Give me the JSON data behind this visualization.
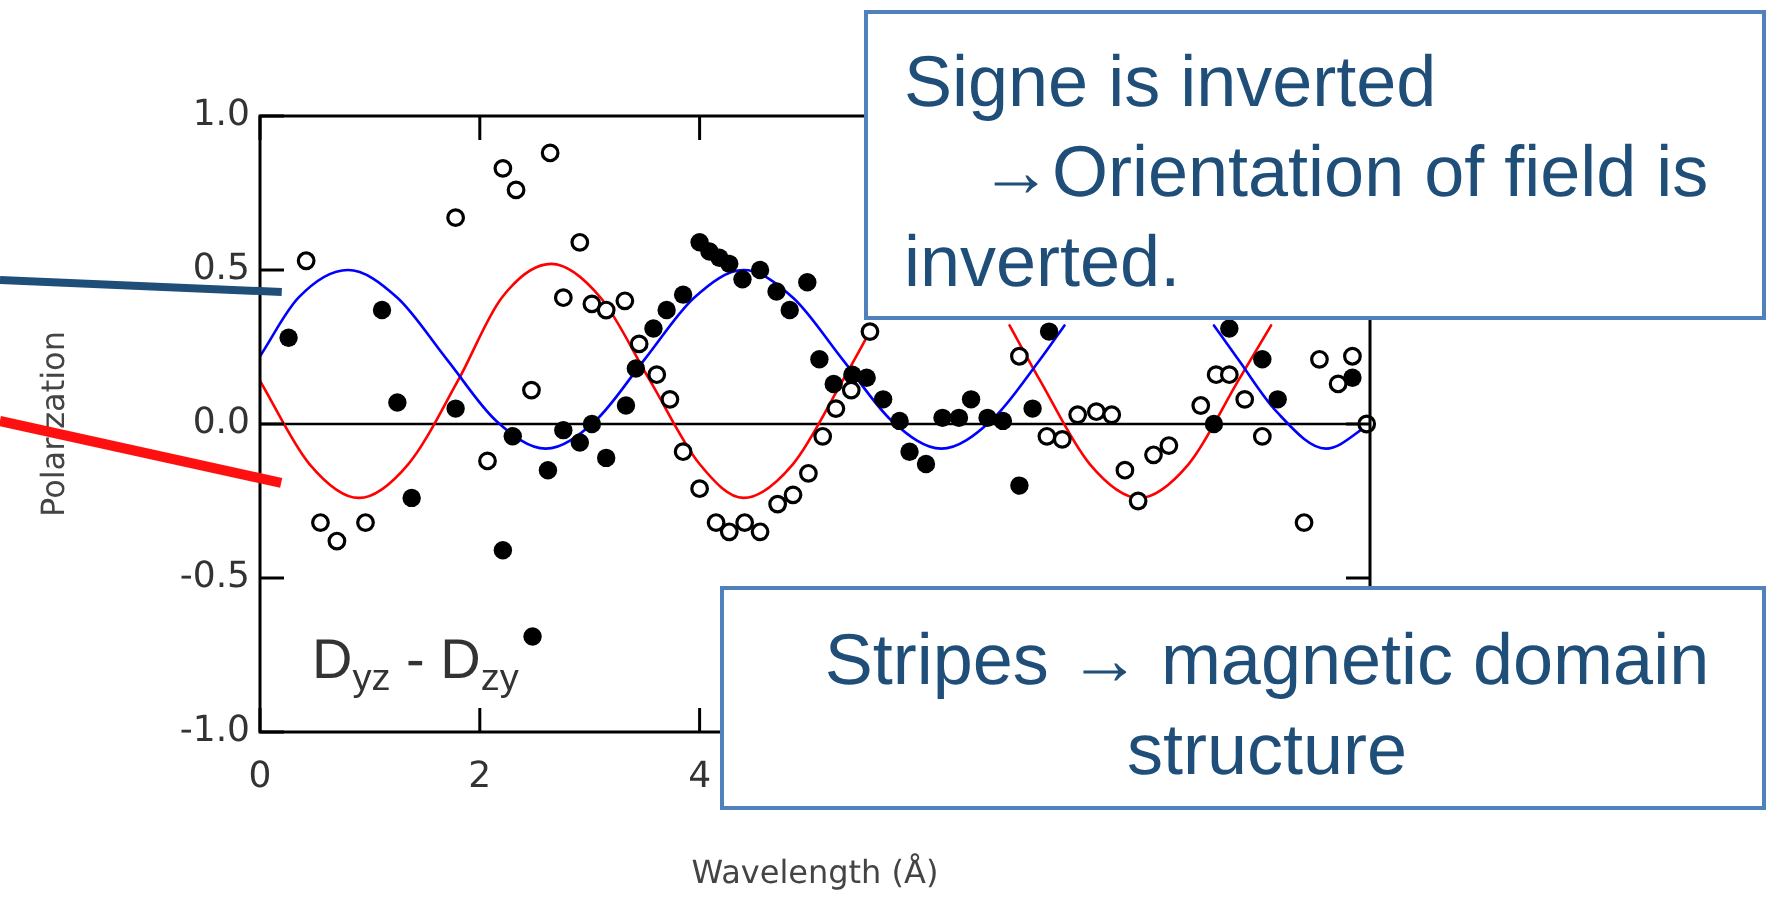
{
  "chart_data": {
    "type": "scatter",
    "xlabel": "Wavelength (Å)",
    "ylabel": "Polarization",
    "xlim": [
      0,
      10.1
    ],
    "ylim": [
      -1,
      1
    ],
    "xticks": [
      0,
      2,
      4
    ],
    "yticks": [
      {
        "value": 1,
        "label": "1.0"
      },
      0.5,
      {
        "value": 0,
        "label": "0.0"
      },
      -0.5,
      {
        "value": -1,
        "label": "-1.0"
      }
    ],
    "grid": false,
    "legend": false,
    "marker": "circle",
    "ref_lines": [
      {
        "axis": "y",
        "value": 0,
        "color": "#000000"
      }
    ],
    "annotations": [
      "D$_{yz}$ - D$_{zy}$",
      "Signe is inverted\n→Orientation of field is inverted.",
      "Stripes → magnetic domain\nstructure"
    ],
    "series": [
      {
        "color": "#000000",
        "x": [
          0.26,
          1.11,
          1.25,
          1.38,
          1.78,
          2.21,
          2.3,
          2.48,
          2.62,
          2.76,
          2.91,
          3.02,
          3.15,
          3.33,
          3.42,
          3.58,
          3.7,
          3.85,
          4.0,
          4.09,
          4.18,
          4.27,
          4.39,
          4.55,
          4.7,
          4.82,
          4.98,
          5.09,
          5.22,
          5.39,
          5.52,
          5.67,
          5.82,
          5.91,
          6.06,
          6.21,
          6.36,
          6.47,
          6.62,
          6.76,
          6.91,
          7.03,
          7.18,
          8.68,
          8.82,
          9.12,
          9.26,
          9.94
        ],
        "values": [
          0.28,
          0.37,
          0.07,
          -0.24,
          0.05,
          -0.41,
          -0.04,
          -0.69,
          -0.15,
          -0.02,
          -0.06,
          0.0,
          -0.11,
          0.06,
          0.18,
          0.31,
          0.37,
          0.42,
          0.59,
          0.56,
          0.54,
          0.52,
          0.47,
          0.5,
          0.43,
          0.37,
          0.46,
          0.21,
          0.13,
          0.16,
          0.15,
          0.08,
          0.01,
          -0.09,
          -0.13,
          0.02,
          0.02,
          0.08,
          0.02,
          0.01,
          -0.2,
          0.05,
          0.3,
          0.0,
          0.31,
          0.21,
          0.08,
          0.15
        ]
      },
      {
        "color": "#000000",
        "x": [
          0.42,
          0.55,
          0.7,
          0.96,
          1.78,
          2.07,
          2.21,
          2.33,
          2.47,
          2.64,
          2.76,
          2.91,
          3.02,
          3.15,
          3.32,
          3.45,
          3.61,
          3.73,
          3.85,
          4.0,
          4.15,
          4.27,
          4.41,
          4.55,
          4.71,
          4.85,
          4.99,
          5.12,
          5.24,
          5.38,
          5.55,
          6.91,
          7.16,
          7.3,
          7.44,
          7.61,
          7.75,
          7.87,
          7.99,
          8.13,
          8.27,
          8.56,
          8.7,
          8.82,
          8.96,
          9.12,
          9.5,
          9.64,
          9.81,
          9.94,
          10.07
        ],
        "values": [
          0.53,
          -0.32,
          -0.38,
          -0.32,
          0.67,
          -0.12,
          0.83,
          0.76,
          0.11,
          0.88,
          0.41,
          0.59,
          0.39,
          0.37,
          0.4,
          0.26,
          0.16,
          0.08,
          -0.09,
          -0.21,
          -0.32,
          -0.35,
          -0.32,
          -0.35,
          -0.26,
          -0.23,
          -0.16,
          -0.04,
          0.05,
          0.11,
          0.3,
          0.22,
          -0.04,
          -0.05,
          0.03,
          0.04,
          0.03,
          -0.15,
          -0.25,
          -0.1,
          -0.07,
          0.06,
          0.16,
          0.16,
          0.08,
          -0.04,
          -0.32,
          0.21,
          0.13,
          0.22,
          0.0
        ]
      },
      {
        "type": "line",
        "color": "#0000ff",
        "marker": "none",
        "line_style": "solid",
        "x": [
          0,
          0.35,
          0.8,
          1.25,
          1.7,
          2.15,
          2.6,
          3.05,
          3.5,
          3.95,
          4.4,
          4.85,
          5.3,
          5.75,
          6.2,
          6.65,
          7.1,
          7.32,
          8.0,
          8.68,
          8.9,
          9.25,
          9.7,
          10.1
        ],
        "values": [
          0.22,
          0.41,
          0.5,
          0.41,
          0.21,
          0.01,
          -0.08,
          0.01,
          0.21,
          0.41,
          0.5,
          0.41,
          0.21,
          0.01,
          -0.08,
          0.01,
          0.21,
          0.32,
          null,
          0.32,
          0.21,
          0.04,
          -0.08,
          0.0
        ]
      },
      {
        "type": "line",
        "color": "#ff0000",
        "marker": "none",
        "line_style": "solid",
        "x": [
          0,
          0.45,
          0.9,
          1.35,
          1.8,
          2.2,
          2.65,
          3.1,
          3.55,
          4.0,
          4.4,
          4.85,
          5.3,
          5.58,
          6.2,
          6.82,
          7.1,
          7.55,
          8.0,
          8.45,
          8.9,
          9.2
        ],
        "values": [
          0.14,
          -0.13,
          -0.24,
          -0.13,
          0.14,
          0.41,
          0.52,
          0.41,
          0.14,
          -0.13,
          -0.24,
          -0.13,
          0.14,
          0.32,
          null,
          0.32,
          0.14,
          -0.13,
          -0.24,
          -0.13,
          0.14,
          0.32
        ]
      }
    ]
  }
}
